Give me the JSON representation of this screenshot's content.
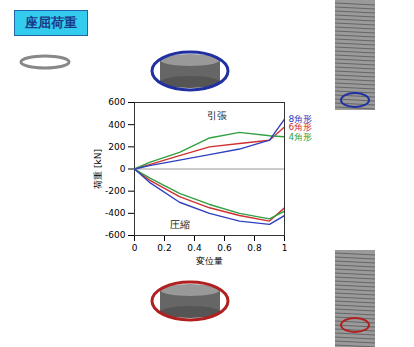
{
  "header": {
    "title": "座屈荷重"
  },
  "chart_data": {
    "type": "line",
    "xlabel": "変位量",
    "ylabel": "荷重 [kN]",
    "x": [
      0,
      0.1,
      0.3,
      0.5,
      0.7,
      0.9,
      1
    ],
    "xlim": [
      0,
      1
    ],
    "xticks": [
      0,
      0.2,
      0.4,
      0.6,
      0.8,
      1
    ],
    "ylim": [
      -600,
      600
    ],
    "yticks": [
      -600,
      -400,
      -200,
      0,
      200,
      400,
      600
    ],
    "grid": false,
    "series": [
      {
        "name": "6角形",
        "color": "#d03030",
        "values": [
          0,
          40,
          120,
          200,
          230,
          260,
          380
        ]
      },
      {
        "name": "4角形",
        "color": "#30a040",
        "values": [
          0,
          60,
          150,
          280,
          330,
          300,
          290
        ]
      },
      {
        "name": "8角形",
        "color": "#3040c0",
        "values": [
          0,
          30,
          80,
          130,
          180,
          260,
          450
        ]
      },
      {
        "name": "6角形",
        "color": "#d03030",
        "values": [
          0,
          -100,
          -250,
          -350,
          -420,
          -470,
          -350
        ]
      },
      {
        "name": "4角形",
        "color": "#30a040",
        "values": [
          0,
          -80,
          -220,
          -320,
          -400,
          -450,
          -380
        ]
      },
      {
        "name": "8角形",
        "color": "#3040c0",
        "values": [
          0,
          -120,
          -300,
          -400,
          -470,
          -500,
          -420
        ]
      }
    ],
    "annotations": [
      {
        "text": "引張",
        "x": 0.55,
        "y": 480
      },
      {
        "text": "圧縮",
        "x": 0.3,
        "y": -500
      }
    ]
  }
}
